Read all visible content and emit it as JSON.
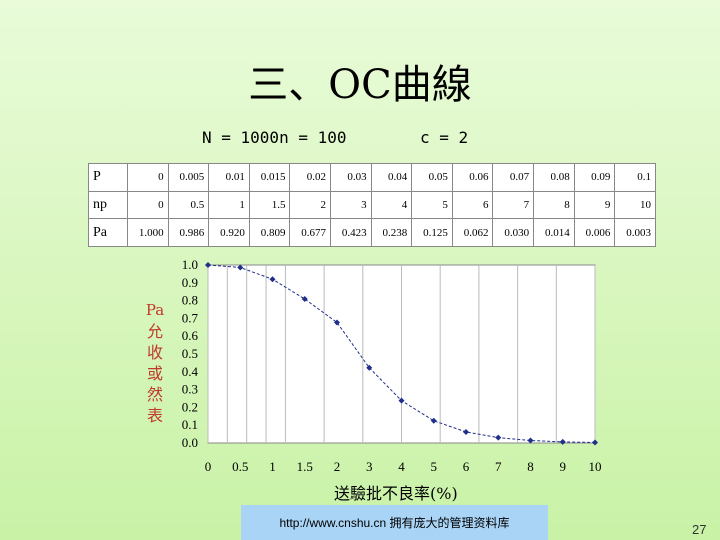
{
  "title": "三、OC曲線",
  "params": {
    "n_text": "N = 1000n = 100",
    "c_text": "c = 2"
  },
  "table": {
    "rows": [
      {
        "label": "P",
        "cells": [
          "0",
          "0.005",
          "0.01",
          "0.015",
          "0.02",
          "0.03",
          "0.04",
          "0.05",
          "0.06",
          "0.07",
          "0.08",
          "0.09",
          "0.1"
        ]
      },
      {
        "label": "np",
        "cells": [
          "0",
          "0.5",
          "1",
          "1.5",
          "2",
          "3",
          "4",
          "5",
          "6",
          "7",
          "8",
          "9",
          "10"
        ]
      },
      {
        "label": "Pa",
        "cells": [
          "1.000",
          "0.986",
          "0.920",
          "0.809",
          "0.677",
          "0.423",
          "0.238",
          "0.125",
          "0.062",
          "0.030",
          "0.014",
          "0.006",
          "0.003"
        ]
      }
    ]
  },
  "y_axis_label": {
    "symbol": "Pa",
    "text": [
      "允",
      "收",
      "或",
      "然",
      "表"
    ]
  },
  "x_axis_label": "送驗批不良率(%)",
  "footer_text": "http://www.cnshu.cn 拥有庞大的管理资料库",
  "page_number": "27",
  "colors": {
    "series": "#1f2f8a",
    "axis_label": "#c0392b"
  },
  "chart_data": {
    "type": "line",
    "x": [
      0,
      0.5,
      1,
      1.5,
      2,
      3,
      4,
      5,
      6,
      7,
      8,
      9,
      10
    ],
    "series": [
      {
        "values": [
          1.0,
          0.986,
          0.92,
          0.809,
          0.677,
          0.423,
          0.238,
          0.125,
          0.062,
          0.03,
          0.014,
          0.006,
          0.003
        ]
      }
    ],
    "x_ticks": [
      "0",
      "0.5",
      "1",
      "1.5",
      "2",
      "3",
      "4",
      "5",
      "6",
      "7",
      "8",
      "9",
      "10"
    ],
    "y_ticks": [
      "1.0",
      "0.9",
      "0.8",
      "0.7",
      "0.6",
      "0.5",
      "0.4",
      "0.3",
      "0.2",
      "0.1",
      "0.0"
    ],
    "xlabel": "送驗批不良率(%)",
    "ylabel": "Pa允收或然表",
    "ylim": [
      0,
      1
    ],
    "grid": true
  }
}
